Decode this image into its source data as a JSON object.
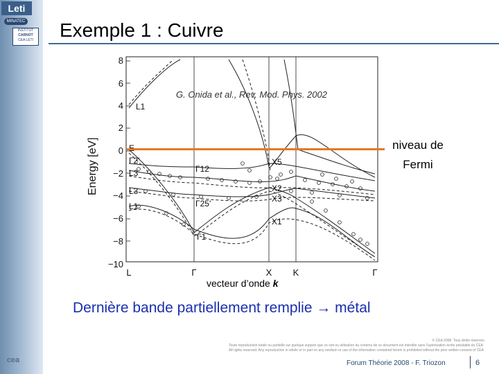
{
  "branding": {
    "leti_logo": "Leti",
    "minatec_logo": "MINATEC",
    "carnot_logo": [
      "INSTITUT",
      "CARNOT",
      "CEA LETI"
    ],
    "cea_logo": "cea"
  },
  "slide": {
    "title": "Exemple 1 : Cuivre",
    "citation": "G. Onida et al., Rev. Mod. Phys. 2002",
    "fermi_label": [
      "niveau de",
      "Fermi"
    ],
    "xaxis_caption_prefix": "vecteur d’onde ",
    "xaxis_caption_symbol": "k",
    "conclusion": "Dernière bande partiellement remplie → métal"
  },
  "figure": {
    "ylabel": "Energy [eV]",
    "yticks": [
      "8",
      "6",
      "4",
      "2",
      "0",
      "−2",
      "−4",
      "−6",
      "−8",
      "−10"
    ],
    "xticks": [
      "L",
      "Γ",
      "X",
      "K",
      "Γ"
    ],
    "point_labels": [
      "L1",
      "E",
      "Γ2'",
      "L3",
      "L3",
      "L1",
      "Γ12",
      "Γ25'",
      "Γ1",
      "X5",
      "X2",
      "X3",
      "X1"
    ]
  },
  "footer": {
    "copyright_lines": [
      "© CEA 2008. Tous droits réservés.",
      "Toute reproduction totale ou partielle sur quelque support que ce soit ou utilisation du contenu de ce document est interdite sans l'autorisation écrite préalable du CEA",
      "All rights reserved. Any reproduction in whole or in part on any medium or use of the information contained herein is prohibited without the prior written consent of CEA"
    ],
    "event": "Forum Théorie 2008 - F. Triozon",
    "page": "6"
  },
  "colors": {
    "fermi_line": "#e87722",
    "conclusion": "#1a2fb0",
    "rule": "#3f6b96",
    "footer": "#2b4870"
  }
}
